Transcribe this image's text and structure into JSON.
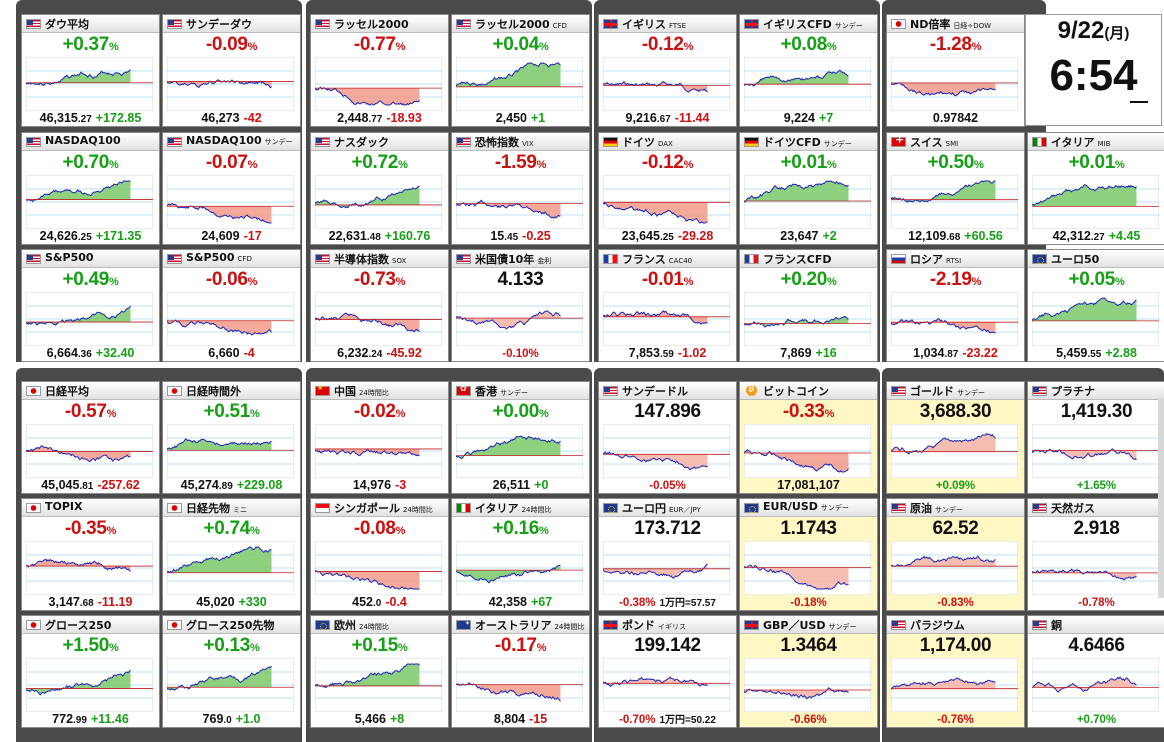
{
  "clock": {
    "date": "9/22",
    "dow": "(月)",
    "time": "6:54"
  },
  "tiles": [
    {
      "flag": "us",
      "name": "ダウ平均",
      "sub": "",
      "change": "+0.37",
      "dir": "up",
      "price_main": "46,315",
      "price_dec": ".27",
      "price_chg": "+172.85",
      "foot": "price"
    },
    {
      "flag": "us",
      "name": "サンデーダウ",
      "sub": "",
      "change": "-0.09",
      "dir": "down",
      "price_main": "46,273",
      "price_dec": "",
      "price_chg": "-42",
      "foot": "price"
    },
    {
      "flag": "us",
      "name": "ラッセル2000",
      "sub": "",
      "change": "-0.77",
      "dir": "down",
      "price_main": "2,448",
      "price_dec": ".77",
      "price_chg": "-18.93",
      "foot": "price"
    },
    {
      "flag": "us",
      "name": "ラッセル2000",
      "sub": "CFD",
      "change": "+0.04",
      "dir": "up",
      "price_main": "2,450",
      "price_dec": "",
      "price_chg": "+1",
      "foot": "price"
    },
    {
      "flag": "uk",
      "name": "イギリス",
      "sub": "FTSE",
      "change": "-0.12",
      "dir": "down",
      "price_main": "9,216",
      "price_dec": ".67",
      "price_chg": "-11.44",
      "foot": "price"
    },
    {
      "flag": "uk",
      "name": "イギリスCFD",
      "sub": "サンデー",
      "change": "+0.08",
      "dir": "up",
      "price_main": "9,224",
      "price_dec": "",
      "price_chg": "+7",
      "foot": "price"
    },
    {
      "flag": "jp",
      "name": "ND倍率",
      "sub": "日経÷DOW",
      "change": "-1.28",
      "dir": "down",
      "price_main": "0.97842",
      "price_dec": "",
      "price_chg": "",
      "foot": "price"
    },
    {
      "flag": "us",
      "name": "NASDAQ100",
      "sub": "",
      "change": "+0.70",
      "dir": "up",
      "price_main": "24,626",
      "price_dec": ".25",
      "price_chg": "+171.35",
      "foot": "price"
    },
    {
      "flag": "us",
      "name": "NASDAQ100",
      "sub": "サンデー",
      "change": "-0.07",
      "dir": "down",
      "price_main": "24,609",
      "price_dec": "",
      "price_chg": "-17",
      "foot": "price"
    },
    {
      "flag": "us",
      "name": "ナスダック",
      "sub": "",
      "change": "+0.72",
      "dir": "up",
      "price_main": "22,631",
      "price_dec": ".48",
      "price_chg": "+160.76",
      "foot": "price"
    },
    {
      "flag": "us",
      "name": "恐怖指数",
      "sub": "VIX",
      "change": "-1.59",
      "dir": "down",
      "price_main": "15",
      "price_dec": ".45",
      "price_chg": "-0.25",
      "foot": "price"
    },
    {
      "flag": "de",
      "name": "ドイツ",
      "sub": "DAX",
      "change": "-0.12",
      "dir": "down",
      "price_main": "23,645",
      "price_dec": ".25",
      "price_chg": "-29.28",
      "foot": "price"
    },
    {
      "flag": "de",
      "name": "ドイツCFD",
      "sub": "サンデー",
      "change": "+0.01",
      "dir": "up",
      "price_main": "23,647",
      "price_dec": "",
      "price_chg": "+2",
      "foot": "price"
    },
    {
      "flag": "ch",
      "name": "スイス",
      "sub": "SMI",
      "change": "+0.50",
      "dir": "up",
      "price_main": "12,109",
      "price_dec": ".68",
      "price_chg": "+60.56",
      "foot": "price"
    },
    {
      "flag": "it",
      "name": "イタリア",
      "sub": "MIB",
      "change": "+0.01",
      "dir": "up",
      "price_main": "42,312",
      "price_dec": ".27",
      "price_chg": "+4.45",
      "foot": "price"
    },
    {
      "flag": "us",
      "name": "S&P500",
      "sub": "",
      "change": "+0.49",
      "dir": "up",
      "price_main": "6,664",
      "price_dec": ".36",
      "price_chg": "+32.40",
      "foot": "price"
    },
    {
      "flag": "us",
      "name": "S&P500",
      "sub": "CFD",
      "change": "-0.06",
      "dir": "down",
      "price_main": "6,660",
      "price_dec": "",
      "price_chg": "-4",
      "foot": "price"
    },
    {
      "flag": "us",
      "name": "半導体指数",
      "sub": "SOX",
      "change": "-0.73",
      "dir": "down",
      "price_main": "6,232",
      "price_dec": ".24",
      "price_chg": "-45.92",
      "foot": "price"
    },
    {
      "flag": "us",
      "name": "米国債10年",
      "sub": "金利",
      "change": "4.133",
      "dir": "dark",
      "price_main": "",
      "price_dec": "",
      "price_chg": "-0.10%",
      "foot": "pct"
    },
    {
      "flag": "fr",
      "name": "フランス",
      "sub": "CAC40",
      "change": "-0.01",
      "dir": "down",
      "price_main": "7,853",
      "price_dec": ".59",
      "price_chg": "-1.02",
      "foot": "price"
    },
    {
      "flag": "fr",
      "name": "フランスCFD",
      "sub": "",
      "change": "+0.20",
      "dir": "up",
      "price_main": "7,869",
      "price_dec": "",
      "price_chg": "+16",
      "foot": "price"
    },
    {
      "flag": "ru",
      "name": "ロシア",
      "sub": "RTSI",
      "change": "-2.19",
      "dir": "down",
      "price_main": "1,034",
      "price_dec": ".87",
      "price_chg": "-23.22",
      "foot": "price"
    },
    {
      "flag": "eu",
      "name": "ユーロ50",
      "sub": "",
      "change": "+0.05",
      "dir": "up",
      "price_main": "5,459",
      "price_dec": ".55",
      "price_chg": "+2.88",
      "foot": "price"
    },
    {
      "flag": "jp",
      "name": "日経平均",
      "sub": "",
      "change": "-0.57",
      "dir": "down",
      "price_main": "45,045",
      "price_dec": ".81",
      "price_chg": "-257.62",
      "foot": "price"
    },
    {
      "flag": "jp",
      "name": "日経時間外",
      "sub": "",
      "change": "+0.51",
      "dir": "up",
      "price_main": "45,274",
      "price_dec": ".89",
      "price_chg": "+229.08",
      "foot": "price"
    },
    {
      "flag": "cn",
      "name": "中国",
      "sub": "24時間比",
      "change": "-0.02",
      "dir": "down",
      "price_main": "14,976",
      "price_dec": "",
      "price_chg": "-3",
      "foot": "price"
    },
    {
      "flag": "hk",
      "name": "香港",
      "sub": "サンデー",
      "change": "+0.00",
      "dir": "up",
      "price_main": "26,511",
      "price_dec": "",
      "price_chg": "+0",
      "foot": "price"
    },
    {
      "flag": "us",
      "name": "サンデードル",
      "sub": "",
      "change": "147.896",
      "dir": "dark",
      "price_main": "",
      "price_dec": "",
      "price_chg": "-0.05%",
      "foot": "pct"
    },
    {
      "flag": "btc",
      "name": "ビットコイン",
      "sub": "",
      "change": "-0.33",
      "dir": "down",
      "price_main": "17,081,107",
      "price_dec": "",
      "price_chg": "",
      "foot": "price"
    },
    {
      "flag": "us",
      "name": "ゴールド",
      "sub": "サンデー",
      "change": "3,688.30",
      "dir": "dark",
      "price_main": "",
      "price_dec": "",
      "price_chg": "+0.09%",
      "foot": "pct"
    },
    {
      "flag": "us",
      "name": "プラチナ",
      "sub": "",
      "change": "1,419.30",
      "dir": "dark",
      "price_main": "",
      "price_dec": "",
      "price_chg": "+1.65%",
      "foot": "pct"
    },
    {
      "flag": "jp",
      "name": "TOPIX",
      "sub": "",
      "change": "-0.35",
      "dir": "down",
      "price_main": "3,147",
      "price_dec": ".68",
      "price_chg": "-11.19",
      "foot": "price"
    },
    {
      "flag": "jp",
      "name": "日経先物",
      "sub": "ミニ",
      "change": "+0.74",
      "dir": "up",
      "price_main": "45,020",
      "price_dec": "",
      "price_chg": "+330",
      "foot": "price"
    },
    {
      "flag": "sg",
      "name": "シンガポール",
      "sub": "24時間比",
      "change": "-0.08",
      "dir": "down",
      "price_main": "452",
      "price_dec": ".0",
      "price_chg": "-0.4",
      "foot": "price"
    },
    {
      "flag": "it",
      "name": "イタリア",
      "sub": "24時間比",
      "change": "+0.16",
      "dir": "up",
      "price_main": "42,358",
      "price_dec": "",
      "price_chg": "+67",
      "foot": "price"
    },
    {
      "flag": "eu",
      "name": "ユーロ円",
      "sub": "EUR／JPY",
      "change": "173.712",
      "dir": "dark",
      "price_main": "",
      "price_dec": "",
      "price_chg": "-0.38%",
      "extra": "1万円=57.57",
      "foot": "pct"
    },
    {
      "flag": "eu",
      "name": "EUR/USD",
      "sub": "サンデー",
      "change": "1.1743",
      "dir": "dark",
      "price_main": "",
      "price_dec": "",
      "price_chg": "-0.18%",
      "foot": "pct"
    },
    {
      "flag": "us",
      "name": "原油",
      "sub": "サンデー",
      "change": "62.52",
      "dir": "dark",
      "price_main": "",
      "price_dec": "",
      "price_chg": "-0.83%",
      "foot": "pct"
    },
    {
      "flag": "us",
      "name": "天然ガス",
      "sub": "",
      "change": "2.918",
      "dir": "dark",
      "price_main": "",
      "price_dec": "",
      "price_chg": "-0.78%",
      "foot": "pct"
    },
    {
      "flag": "jp",
      "name": "グロース250",
      "sub": "",
      "change": "+1.50",
      "dir": "up",
      "price_main": "772",
      "price_dec": ".99",
      "price_chg": "+11.46",
      "foot": "price"
    },
    {
      "flag": "jp",
      "name": "グロース250先物",
      "sub": "",
      "change": "+0.13",
      "dir": "up",
      "price_main": "769",
      "price_dec": ".0",
      "price_chg": "+1.0",
      "foot": "price"
    },
    {
      "flag": "eu",
      "name": "欧州",
      "sub": "24時間比",
      "change": "+0.15",
      "dir": "up",
      "price_main": "5,466",
      "price_dec": "",
      "price_chg": "+8",
      "foot": "price"
    },
    {
      "flag": "au",
      "name": "オーストラリア",
      "sub": "24時間比",
      "change": "-0.17",
      "dir": "down",
      "price_main": "8,804",
      "price_dec": "",
      "price_chg": "-15",
      "foot": "price"
    },
    {
      "flag": "uk",
      "name": "ポンド",
      "sub": "イギリス",
      "change": "199.142",
      "dir": "dark",
      "price_main": "",
      "price_dec": "",
      "price_chg": "-0.70%",
      "extra": "1万円=50.22",
      "foot": "pct"
    },
    {
      "flag": "uk",
      "name": "GBP／USD",
      "sub": "サンデー",
      "change": "1.3464",
      "dir": "dark",
      "price_main": "",
      "price_dec": "",
      "price_chg": "-0.66%",
      "foot": "pct"
    },
    {
      "flag": "us",
      "name": "パラジウム",
      "sub": "",
      "change": "1,174.00",
      "dir": "dark",
      "price_main": "",
      "price_dec": "",
      "price_chg": "-0.76%",
      "foot": "pct"
    },
    {
      "flag": "us",
      "name": "銅",
      "sub": "",
      "change": "4.6466",
      "dir": "dark",
      "price_main": "",
      "price_dec": "",
      "price_chg": "+0.70%",
      "foot": "pct"
    }
  ]
}
